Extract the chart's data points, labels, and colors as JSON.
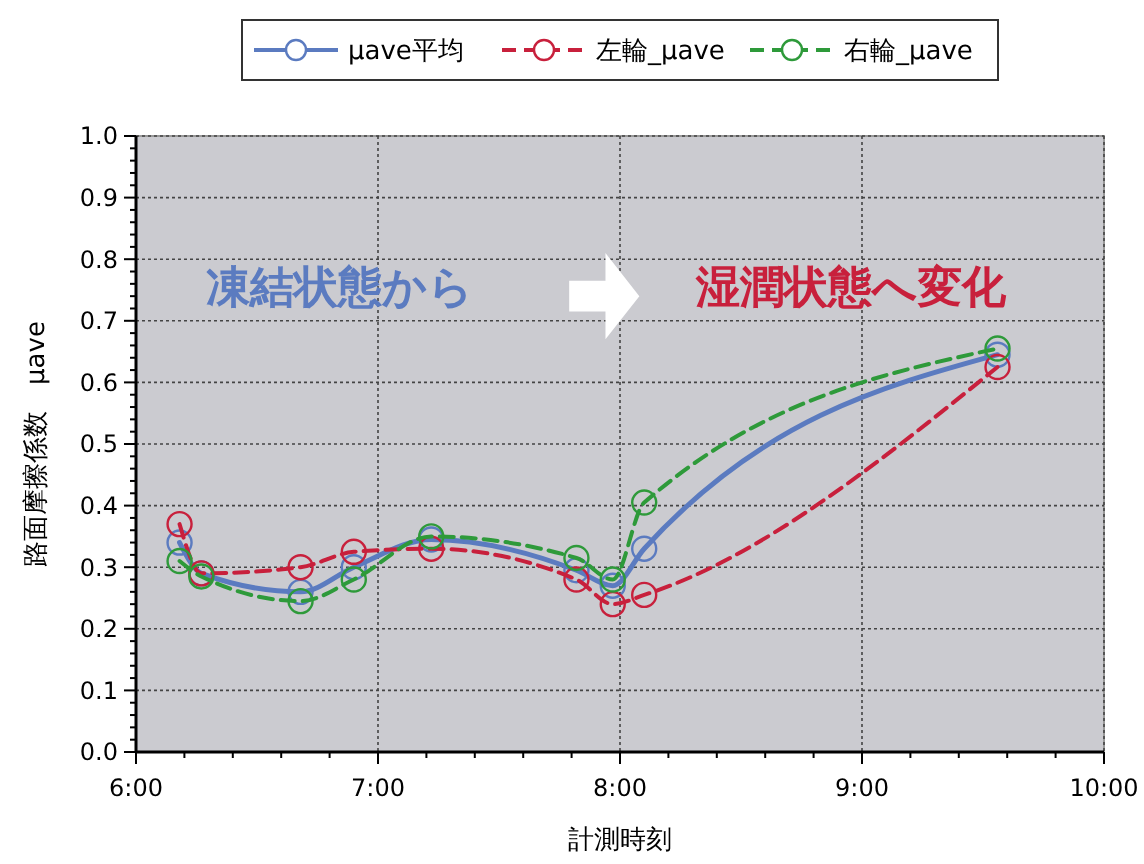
{
  "chart_data": {
    "type": "line",
    "xlabel": "計測時刻",
    "ylabel": "路面摩擦係数　μave",
    "x": [
      6.18,
      6.27,
      6.68,
      6.9,
      7.22,
      7.82,
      7.97,
      8.1,
      9.56
    ],
    "series": [
      {
        "name": "μave平均",
        "color": "#5b7bc0",
        "line_style": "solid",
        "values": [
          0.34,
          0.29,
          0.26,
          0.3,
          0.345,
          0.295,
          0.27,
          0.33,
          0.645
        ]
      },
      {
        "name": "左輪_μave",
        "color": "#c8203c",
        "line_style": "dashed",
        "values": [
          0.37,
          0.29,
          0.3,
          0.325,
          0.33,
          0.28,
          0.24,
          0.255,
          0.625
        ]
      },
      {
        "name": "右輪_μave",
        "color": "#2e9a3a",
        "line_style": "dashed",
        "values": [
          0.31,
          0.285,
          0.245,
          0.28,
          0.35,
          0.315,
          0.28,
          0.405,
          0.655
        ]
      }
    ],
    "xlim": [
      6,
      10
    ],
    "xticks": [
      {
        "value": 6,
        "label": "6:00"
      },
      {
        "value": 7,
        "label": "7:00"
      },
      {
        "value": 8,
        "label": "8:00"
      },
      {
        "value": 9,
        "label": "9:00"
      },
      {
        "value": 10,
        "label": "10:00"
      }
    ],
    "ylim": [
      0,
      1
    ],
    "yticks": [
      {
        "value": 0,
        "label": "0.0"
      },
      0.1,
      0.2,
      0.3,
      0.4,
      0.5,
      0.6,
      0.7,
      0.8,
      0.9,
      {
        "value": 1,
        "label": "1.0"
      }
    ],
    "grid": true,
    "legend": "top",
    "marker": "circle",
    "annotations": [
      "凍結状態から",
      "湿潤状態へ変化"
    ]
  }
}
